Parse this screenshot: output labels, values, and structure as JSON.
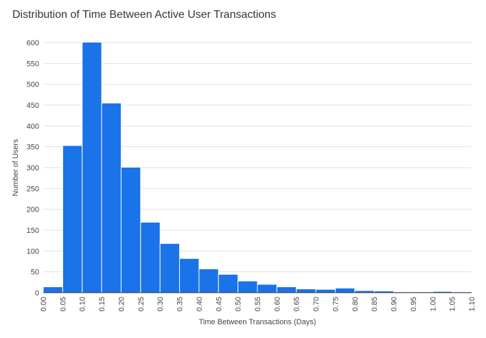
{
  "chart_data": {
    "type": "bar",
    "title": "Distribution of Time Between Active User Transactions",
    "xlabel": "Time Between Transactions (Days)",
    "ylabel": "Number of Users",
    "x_ticks": [
      "0.00",
      "0.05",
      "0.10",
      "0.15",
      "0.20",
      "0.25",
      "0.30",
      "0.35",
      "0.40",
      "0.45",
      "0.50",
      "0.55",
      "0.60",
      "0.65",
      "0.70",
      "0.75",
      "0.80",
      "0.85",
      "0.90",
      "0.95",
      "1.00",
      "1.05",
      "1.10"
    ],
    "y_ticks": [
      0,
      50,
      100,
      150,
      200,
      250,
      300,
      350,
      400,
      450,
      500,
      550,
      600
    ],
    "bin_edges": [
      0.0,
      0.05,
      0.1,
      0.15,
      0.2,
      0.25,
      0.3,
      0.35,
      0.4,
      0.45,
      0.5,
      0.55,
      0.6,
      0.65,
      0.7,
      0.75,
      0.8,
      0.85,
      0.9,
      0.95,
      1.0,
      1.05,
      1.1
    ],
    "values": [
      14,
      353,
      601,
      455,
      301,
      169,
      118,
      82,
      57,
      44,
      28,
      20,
      14,
      9,
      8,
      11,
      5,
      4,
      2,
      2,
      3,
      2
    ],
    "xlim": [
      0,
      1.1
    ],
    "ylim": [
      0,
      600
    ],
    "grid": true,
    "bar_color": "#1a73e8",
    "grid_color": "#e0e0e0"
  }
}
